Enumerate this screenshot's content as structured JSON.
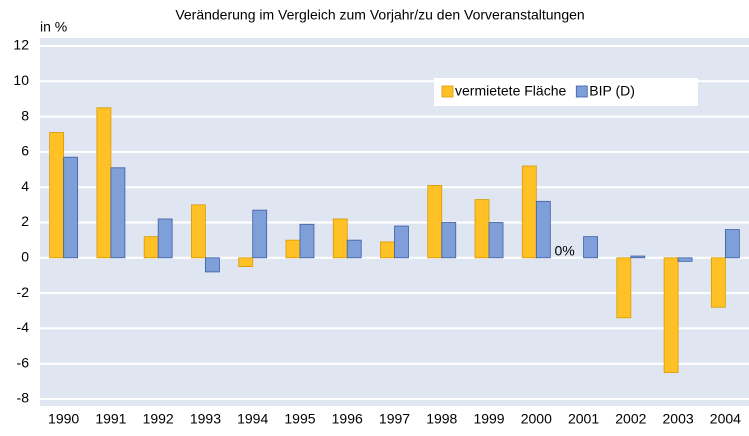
{
  "chart_data": {
    "type": "bar",
    "title": "Veränderung im Vergleich zum Vorjahr/zu den Vorveranstaltungen",
    "y_label": "in %",
    "categories": [
      "1990",
      "1991",
      "1992",
      "1993",
      "1994",
      "1995",
      "1996",
      "1997",
      "1998",
      "1999",
      "2000",
      "2001",
      "2002",
      "2003",
      "2004"
    ],
    "series": [
      {
        "name": "vermietete Fläche",
        "color": "#ffc125",
        "values": [
          7.1,
          8.5,
          1.2,
          3.0,
          -0.5,
          1.0,
          2.2,
          0.9,
          4.1,
          3.3,
          5.2,
          0,
          -3.4,
          -6.5,
          -2.8
        ],
        "value_labels": [
          null,
          null,
          null,
          null,
          null,
          null,
          null,
          null,
          null,
          null,
          null,
          "0%",
          null,
          null,
          null
        ]
      },
      {
        "name": "BIP (D)",
        "color": "#7f9fd8",
        "values": [
          5.7,
          5.1,
          2.2,
          -0.8,
          2.7,
          1.9,
          1.0,
          1.8,
          2.0,
          2.0,
          3.2,
          1.2,
          0.1,
          -0.2,
          1.6
        ]
      }
    ],
    "ylim": [
      -8,
      12
    ],
    "yticks": [
      -8,
      -6,
      -4,
      -2,
      0,
      2,
      4,
      6,
      8,
      10,
      12
    ],
    "grid": true,
    "legend": "upper right"
  }
}
